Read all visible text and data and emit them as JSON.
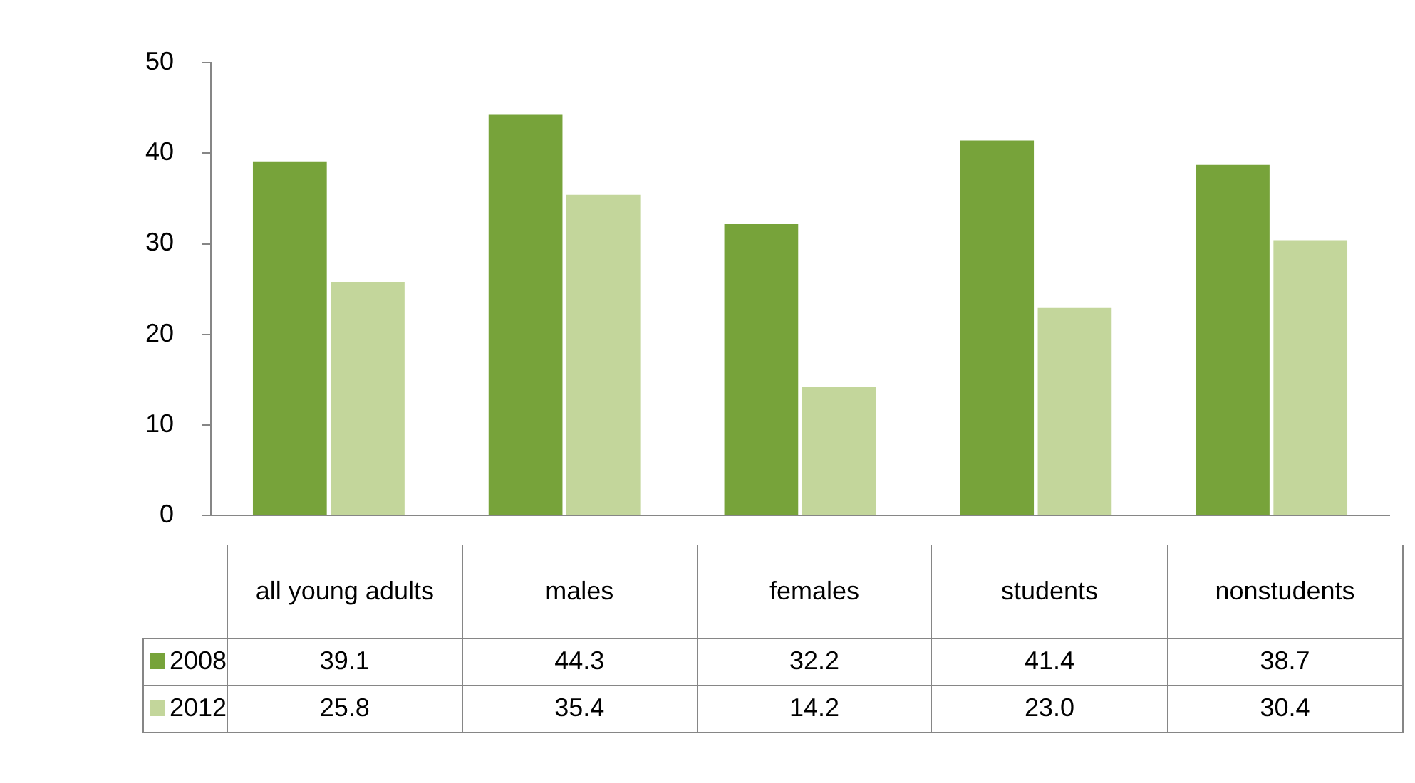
{
  "chart_data": {
    "type": "bar",
    "categories": [
      "all young adults",
      "males",
      "females",
      "students",
      "nonstudents"
    ],
    "series": [
      {
        "name": "2008",
        "color": "#77a33a",
        "values": [
          39.1,
          44.3,
          32.2,
          41.4,
          38.7
        ],
        "value_labels": [
          "39.1",
          "44.3",
          "32.2",
          "41.4",
          "38.7"
        ]
      },
      {
        "name": "2012",
        "color": "#c3d69b",
        "values": [
          25.8,
          35.4,
          14.2,
          23.0,
          30.4
        ],
        "value_labels": [
          "25.8",
          "35.4",
          "14.2",
          "23.0",
          "30.4"
        ]
      }
    ],
    "ylim": [
      0,
      50
    ],
    "yticks": [
      0,
      10,
      20,
      30,
      40,
      50
    ],
    "grid": false,
    "legend": "bottom left"
  }
}
